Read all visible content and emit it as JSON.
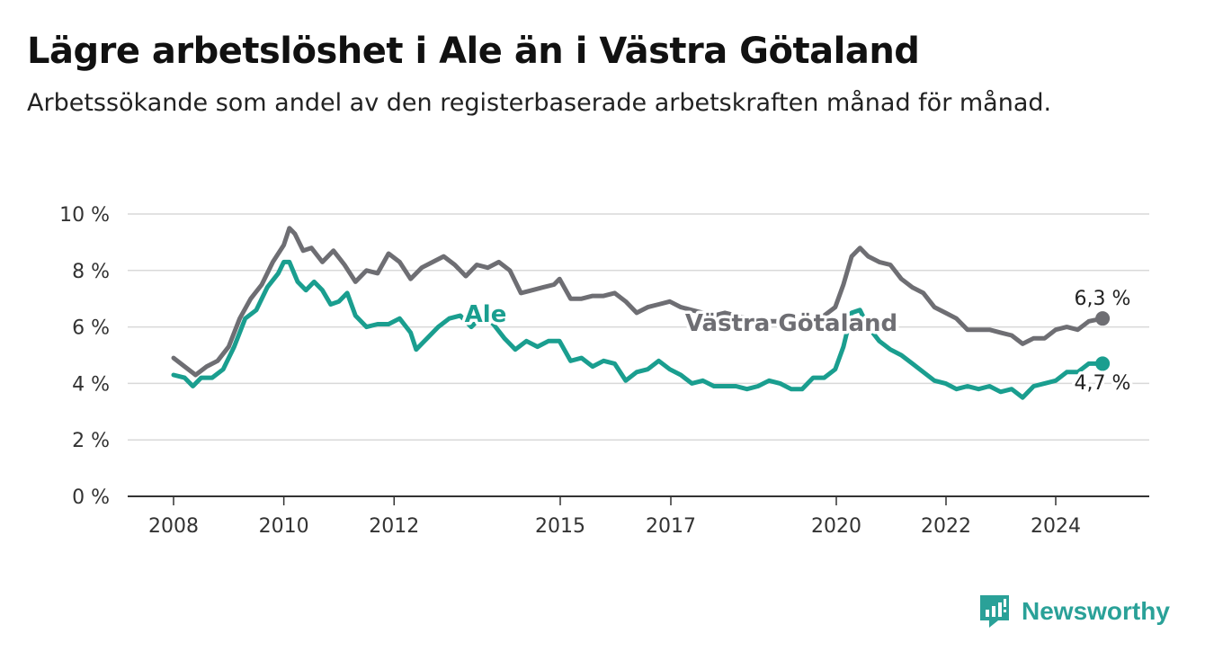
{
  "title": "Lägre arbetslöshet i Ale än i Västra Götaland",
  "subtitle": "Arbetssökande som andel av den registerbaserade arbetskraften månad för månad.",
  "brand": {
    "name": "Newsworthy",
    "icon": "newsworthy-logo-icon"
  },
  "colors": {
    "ale": "#1a9e8f",
    "vg": "#6e6e73",
    "grid": "#d9d9d9",
    "axis": "#333333"
  },
  "chart_data": {
    "type": "line",
    "ylim": [
      0,
      10
    ],
    "y_ticks": [
      0,
      2,
      4,
      6,
      8,
      10
    ],
    "y_tick_labels": [
      "0 %",
      "2 %",
      "4 %",
      "6 %",
      "8 %",
      "10 %"
    ],
    "x_ticks": [
      2008,
      2010,
      2012,
      2015,
      2017,
      2020,
      2022,
      2024
    ],
    "x_tick_labels": [
      "2008",
      "2010",
      "2012",
      "2015",
      "2017",
      "2020",
      "2022",
      "2024"
    ],
    "grid": true,
    "series": [
      {
        "name": "Västra Götaland",
        "label": "Västra Götaland",
        "end_label": "6,3 %",
        "color": "#6e6e73",
        "points": [
          [
            2008.0,
            4.9
          ],
          [
            2008.2,
            4.6
          ],
          [
            2008.4,
            4.3
          ],
          [
            2008.6,
            4.6
          ],
          [
            2008.8,
            4.8
          ],
          [
            2009.0,
            5.3
          ],
          [
            2009.2,
            6.3
          ],
          [
            2009.4,
            7.0
          ],
          [
            2009.6,
            7.5
          ],
          [
            2009.8,
            8.3
          ],
          [
            2010.0,
            8.9
          ],
          [
            2010.1,
            9.5
          ],
          [
            2010.2,
            9.3
          ],
          [
            2010.35,
            8.7
          ],
          [
            2010.5,
            8.8
          ],
          [
            2010.7,
            8.3
          ],
          [
            2010.9,
            8.7
          ],
          [
            2011.1,
            8.2
          ],
          [
            2011.3,
            7.6
          ],
          [
            2011.5,
            8.0
          ],
          [
            2011.7,
            7.9
          ],
          [
            2011.9,
            8.6
          ],
          [
            2012.1,
            8.3
          ],
          [
            2012.3,
            7.7
          ],
          [
            2012.5,
            8.1
          ],
          [
            2012.7,
            8.3
          ],
          [
            2012.9,
            8.5
          ],
          [
            2013.1,
            8.2
          ],
          [
            2013.3,
            7.8
          ],
          [
            2013.5,
            8.2
          ],
          [
            2013.7,
            8.1
          ],
          [
            2013.9,
            8.3
          ],
          [
            2014.1,
            8.0
          ],
          [
            2014.3,
            7.2
          ],
          [
            2014.5,
            7.3
          ],
          [
            2014.7,
            7.4
          ],
          [
            2014.9,
            7.5
          ],
          [
            2015.0,
            7.7
          ],
          [
            2015.2,
            7.0
          ],
          [
            2015.4,
            7.0
          ],
          [
            2015.6,
            7.1
          ],
          [
            2015.8,
            7.1
          ],
          [
            2016.0,
            7.2
          ],
          [
            2016.2,
            6.9
          ],
          [
            2016.4,
            6.5
          ],
          [
            2016.6,
            6.7
          ],
          [
            2016.8,
            6.8
          ],
          [
            2017.0,
            6.9
          ],
          [
            2017.2,
            6.7
          ],
          [
            2017.4,
            6.6
          ],
          [
            2017.6,
            6.5
          ],
          [
            2017.8,
            6.4
          ],
          [
            2018.0,
            6.5
          ],
          [
            2018.2,
            6.4
          ],
          [
            2018.4,
            6.3
          ],
          [
            2018.6,
            6.3
          ],
          [
            2018.8,
            6.2
          ],
          [
            2019.0,
            6.2
          ],
          [
            2019.2,
            6.1
          ],
          [
            2019.4,
            6.2
          ],
          [
            2019.6,
            6.2
          ],
          [
            2019.8,
            6.4
          ],
          [
            2020.0,
            6.7
          ],
          [
            2020.15,
            7.5
          ],
          [
            2020.3,
            8.5
          ],
          [
            2020.45,
            8.8
          ],
          [
            2020.6,
            8.5
          ],
          [
            2020.8,
            8.3
          ],
          [
            2021.0,
            8.2
          ],
          [
            2021.2,
            7.7
          ],
          [
            2021.4,
            7.4
          ],
          [
            2021.6,
            7.2
          ],
          [
            2021.8,
            6.7
          ],
          [
            2022.0,
            6.5
          ],
          [
            2022.2,
            6.3
          ],
          [
            2022.4,
            5.9
          ],
          [
            2022.6,
            5.9
          ],
          [
            2022.8,
            5.9
          ],
          [
            2023.0,
            5.8
          ],
          [
            2023.2,
            5.7
          ],
          [
            2023.4,
            5.4
          ],
          [
            2023.6,
            5.6
          ],
          [
            2023.8,
            5.6
          ],
          [
            2024.0,
            5.9
          ],
          [
            2024.2,
            6.0
          ],
          [
            2024.4,
            5.9
          ],
          [
            2024.6,
            6.2
          ],
          [
            2024.85,
            6.3
          ]
        ]
      },
      {
        "name": "Ale",
        "label": "Ale",
        "end_label": "4,7 %",
        "color": "#1a9e8f",
        "points": [
          [
            2008.0,
            4.3
          ],
          [
            2008.2,
            4.2
          ],
          [
            2008.35,
            3.9
          ],
          [
            2008.5,
            4.2
          ],
          [
            2008.7,
            4.2
          ],
          [
            2008.9,
            4.5
          ],
          [
            2009.1,
            5.3
          ],
          [
            2009.3,
            6.3
          ],
          [
            2009.5,
            6.6
          ],
          [
            2009.7,
            7.4
          ],
          [
            2009.9,
            7.9
          ],
          [
            2010.0,
            8.3
          ],
          [
            2010.1,
            8.3
          ],
          [
            2010.25,
            7.6
          ],
          [
            2010.4,
            7.3
          ],
          [
            2010.55,
            7.6
          ],
          [
            2010.7,
            7.3
          ],
          [
            2010.85,
            6.8
          ],
          [
            2011.0,
            6.9
          ],
          [
            2011.15,
            7.2
          ],
          [
            2011.3,
            6.4
          ],
          [
            2011.5,
            6.0
          ],
          [
            2011.7,
            6.1
          ],
          [
            2011.9,
            6.1
          ],
          [
            2012.1,
            6.3
          ],
          [
            2012.3,
            5.8
          ],
          [
            2012.4,
            5.2
          ],
          [
            2012.6,
            5.6
          ],
          [
            2012.8,
            6.0
          ],
          [
            2013.0,
            6.3
          ],
          [
            2013.2,
            6.4
          ],
          [
            2013.4,
            6.0
          ],
          [
            2013.6,
            6.4
          ],
          [
            2013.8,
            6.1
          ],
          [
            2014.0,
            5.6
          ],
          [
            2014.2,
            5.2
          ],
          [
            2014.4,
            5.5
          ],
          [
            2014.6,
            5.3
          ],
          [
            2014.8,
            5.5
          ],
          [
            2015.0,
            5.5
          ],
          [
            2015.2,
            4.8
          ],
          [
            2015.4,
            4.9
          ],
          [
            2015.6,
            4.6
          ],
          [
            2015.8,
            4.8
          ],
          [
            2016.0,
            4.7
          ],
          [
            2016.2,
            4.1
          ],
          [
            2016.4,
            4.4
          ],
          [
            2016.6,
            4.5
          ],
          [
            2016.8,
            4.8
          ],
          [
            2017.0,
            4.5
          ],
          [
            2017.2,
            4.3
          ],
          [
            2017.4,
            4.0
          ],
          [
            2017.6,
            4.1
          ],
          [
            2017.8,
            3.9
          ],
          [
            2018.0,
            3.9
          ],
          [
            2018.2,
            3.9
          ],
          [
            2018.4,
            3.8
          ],
          [
            2018.6,
            3.9
          ],
          [
            2018.8,
            4.1
          ],
          [
            2019.0,
            4.0
          ],
          [
            2019.2,
            3.8
          ],
          [
            2019.4,
            3.8
          ],
          [
            2019.6,
            4.2
          ],
          [
            2019.8,
            4.2
          ],
          [
            2020.0,
            4.5
          ],
          [
            2020.15,
            5.3
          ],
          [
            2020.3,
            6.5
          ],
          [
            2020.45,
            6.6
          ],
          [
            2020.6,
            6.0
          ],
          [
            2020.8,
            5.5
          ],
          [
            2021.0,
            5.2
          ],
          [
            2021.2,
            5.0
          ],
          [
            2021.4,
            4.7
          ],
          [
            2021.6,
            4.4
          ],
          [
            2021.8,
            4.1
          ],
          [
            2022.0,
            4.0
          ],
          [
            2022.2,
            3.8
          ],
          [
            2022.4,
            3.9
          ],
          [
            2022.6,
            3.8
          ],
          [
            2022.8,
            3.9
          ],
          [
            2023.0,
            3.7
          ],
          [
            2023.2,
            3.8
          ],
          [
            2023.4,
            3.5
          ],
          [
            2023.6,
            3.9
          ],
          [
            2023.8,
            4.0
          ],
          [
            2024.0,
            4.1
          ],
          [
            2024.2,
            4.4
          ],
          [
            2024.4,
            4.4
          ],
          [
            2024.6,
            4.7
          ],
          [
            2024.85,
            4.7
          ]
        ]
      }
    ]
  }
}
